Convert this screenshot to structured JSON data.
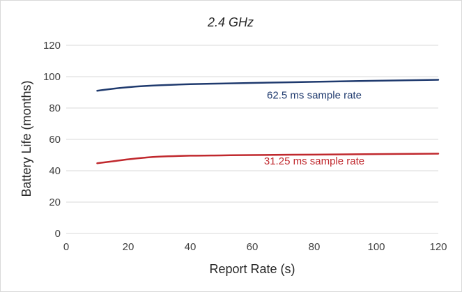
{
  "chart_data": {
    "type": "line",
    "title": "2.4 GHz",
    "xlabel": "Report Rate (s)",
    "ylabel": "Battery Life (months)",
    "xlim": [
      0,
      120
    ],
    "ylim": [
      0,
      120
    ],
    "x_ticks": [
      "0",
      "20",
      "40",
      "60",
      "80",
      "100",
      "120"
    ],
    "y_ticks": [
      "0",
      "20",
      "40",
      "60",
      "80",
      "100",
      "120"
    ],
    "grid": true,
    "legend": "none",
    "series": [
      {
        "name": "62.5 ms sample rate",
        "color": "#1f3a6e",
        "x": [
          10,
          15,
          20,
          25,
          30,
          40,
          50,
          60,
          80,
          100,
          120
        ],
        "y": [
          91,
          92.3,
          93.3,
          94,
          94.5,
          95.2,
          95.6,
          96,
          96.7,
          97.4,
          98
        ]
      },
      {
        "name": "31.25 ms sample rate",
        "color": "#c0282d",
        "x": [
          10,
          15,
          20,
          25,
          30,
          40,
          50,
          60,
          80,
          100,
          120
        ],
        "y": [
          44.8,
          46,
          47.3,
          48.3,
          49,
          49.6,
          49.8,
          50,
          50.3,
          50.6,
          50.9
        ]
      }
    ]
  }
}
